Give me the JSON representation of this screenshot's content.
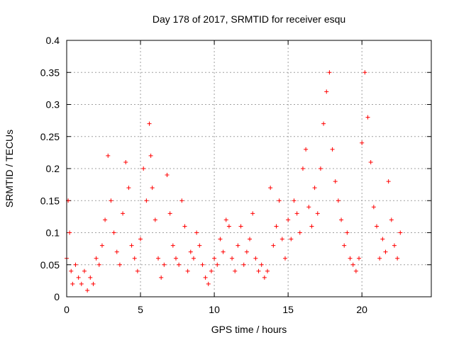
{
  "chart_data": {
    "type": "scatter",
    "title": "Day 178 of 2017, SRMTID for receiver esqu",
    "xlabel": "GPS time / hours",
    "ylabel": "SRMTID / TECUs",
    "xlim": [
      0,
      24.7
    ],
    "ylim": [
      0,
      0.4
    ],
    "xticks": [
      0,
      5,
      10,
      15,
      20
    ],
    "xtick_labels": [
      "0",
      "5",
      "10",
      "15",
      "20"
    ],
    "yticks": [
      0,
      0.05,
      0.1,
      0.15,
      0.2,
      0.25,
      0.3,
      0.35,
      0.4
    ],
    "ytick_labels": [
      "0",
      "0.05",
      "0.1",
      "0.15",
      "0.2",
      "0.25",
      "0.3",
      "0.35",
      "0.4"
    ],
    "grid": true,
    "marker": "plus",
    "color": "#ff0000",
    "series": [
      {
        "name": "SRMTID",
        "x": [
          0.0,
          0.1,
          0.2,
          0.3,
          0.4,
          0.6,
          0.8,
          1.0,
          1.2,
          1.4,
          1.6,
          1.8,
          2.0,
          2.2,
          2.4,
          2.6,
          2.8,
          3.0,
          3.2,
          3.4,
          3.6,
          3.8,
          4.0,
          4.2,
          4.4,
          4.6,
          4.8,
          5.0,
          5.2,
          5.4,
          5.6,
          5.7,
          5.8,
          6.0,
          6.2,
          6.4,
          6.6,
          6.8,
          7.0,
          7.2,
          7.4,
          7.6,
          7.8,
          8.0,
          8.2,
          8.4,
          8.6,
          8.8,
          9.0,
          9.2,
          9.4,
          9.6,
          9.8,
          10.0,
          10.2,
          10.4,
          10.6,
          10.8,
          11.0,
          11.2,
          11.4,
          11.6,
          11.8,
          12.0,
          12.2,
          12.4,
          12.6,
          12.8,
          13.0,
          13.2,
          13.4,
          13.6,
          13.8,
          14.0,
          14.2,
          14.4,
          14.6,
          14.8,
          15.0,
          15.2,
          15.4,
          15.6,
          15.8,
          16.0,
          16.2,
          16.4,
          16.6,
          16.8,
          17.0,
          17.2,
          17.4,
          17.6,
          17.8,
          18.0,
          18.2,
          18.4,
          18.6,
          18.8,
          19.0,
          19.2,
          19.4,
          19.6,
          19.8,
          20.0,
          20.2,
          20.4,
          20.6,
          20.8,
          21.0,
          21.2,
          21.4,
          21.6,
          21.8,
          22.0,
          22.2,
          22.4,
          22.6
        ],
        "y": [
          0.06,
          0.15,
          0.1,
          0.04,
          0.02,
          0.05,
          0.03,
          0.02,
          0.04,
          0.01,
          0.03,
          0.02,
          0.06,
          0.05,
          0.08,
          0.12,
          0.22,
          0.15,
          0.1,
          0.07,
          0.05,
          0.13,
          0.21,
          0.17,
          0.08,
          0.06,
          0.04,
          0.09,
          0.2,
          0.15,
          0.27,
          0.22,
          0.17,
          0.12,
          0.06,
          0.03,
          0.05,
          0.19,
          0.13,
          0.08,
          0.06,
          0.05,
          0.15,
          0.11,
          0.04,
          0.07,
          0.06,
          0.1,
          0.08,
          0.05,
          0.03,
          0.02,
          0.04,
          0.06,
          0.05,
          0.09,
          0.07,
          0.12,
          0.11,
          0.06,
          0.04,
          0.08,
          0.11,
          0.05,
          0.07,
          0.09,
          0.13,
          0.06,
          0.04,
          0.05,
          0.03,
          0.04,
          0.17,
          0.08,
          0.11,
          0.15,
          0.09,
          0.06,
          0.12,
          0.09,
          0.15,
          0.13,
          0.1,
          0.2,
          0.23,
          0.14,
          0.11,
          0.17,
          0.13,
          0.2,
          0.27,
          0.32,
          0.35,
          0.23,
          0.18,
          0.15,
          0.12,
          0.08,
          0.1,
          0.06,
          0.05,
          0.04,
          0.06,
          0.24,
          0.35,
          0.28,
          0.21,
          0.14,
          0.11,
          0.06,
          0.09,
          0.07,
          0.18,
          0.12,
          0.08,
          0.06,
          0.1
        ]
      }
    ]
  }
}
